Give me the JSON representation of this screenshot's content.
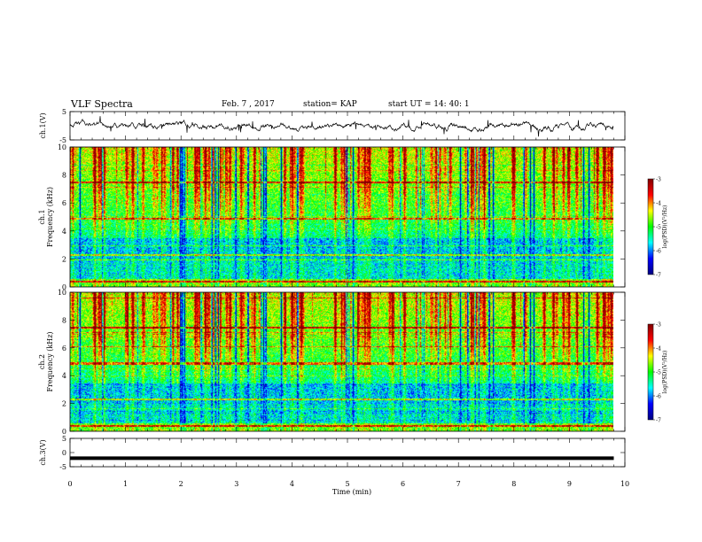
{
  "header": {
    "title": "VLF Spectra",
    "date": "Feb. 7 , 2017",
    "station": "station= KAP",
    "start_time": "start UT =   14: 40: 1"
  },
  "chart_data": [
    {
      "type": "line",
      "panel": "ch1-waveform",
      "ylabel": "ch.1(V)",
      "ylim": [
        -5,
        5
      ],
      "yticks": [
        "5",
        "-5"
      ],
      "xlim": [
        0,
        10
      ],
      "data_end_min": 9.8
    },
    {
      "type": "heatmap",
      "panel": "ch1-spectrogram",
      "ylabel_channel": "ch.1",
      "ylabel": "Frequency (kHz)",
      "ylim": [
        0,
        10
      ],
      "yticks": [
        "0",
        "2",
        "4",
        "6",
        "8",
        "10"
      ],
      "xlim": [
        0,
        10
      ],
      "data_end_min": 9.8,
      "colorbar": {
        "label": "log(PSD)(V²/Hz)",
        "range": [
          -7,
          -3
        ],
        "ticks": [
          "-3",
          "-4",
          "-5",
          "-6",
          "-7"
        ],
        "colors": [
          "#800000",
          "#ff0000",
          "#ffff00",
          "#00ff00",
          "#00ffff",
          "#0000ff",
          "#000080"
        ]
      }
    },
    {
      "type": "heatmap",
      "panel": "ch2-spectrogram",
      "ylabel_channel": "ch.2",
      "ylabel": "Frequency (kHz)",
      "ylim": [
        0,
        10
      ],
      "yticks": [
        "0",
        "2",
        "4",
        "6",
        "8",
        "10"
      ],
      "xlim": [
        0,
        10
      ],
      "data_end_min": 9.8,
      "colorbar": {
        "label": "log(PSD)(V²/Hz)",
        "range": [
          -7,
          -3
        ],
        "ticks": [
          "-3",
          "-4",
          "-5",
          "-6",
          "-7"
        ],
        "colors": [
          "#800000",
          "#ff0000",
          "#ffff00",
          "#00ff00",
          "#00ffff",
          "#0000ff",
          "#000080"
        ]
      }
    },
    {
      "type": "line",
      "panel": "ch3-waveform",
      "ylabel": "ch.3(V)",
      "ylim": [
        -5,
        5
      ],
      "yticks": [
        "5",
        "0",
        "-5"
      ],
      "flat_value": -2,
      "xlim": [
        0,
        10
      ],
      "data_end_min": 9.8,
      "xlabel": "Time (min)",
      "xticks": [
        "0",
        "1",
        "2",
        "3",
        "4",
        "5",
        "6",
        "7",
        "8",
        "9",
        "10"
      ]
    }
  ]
}
